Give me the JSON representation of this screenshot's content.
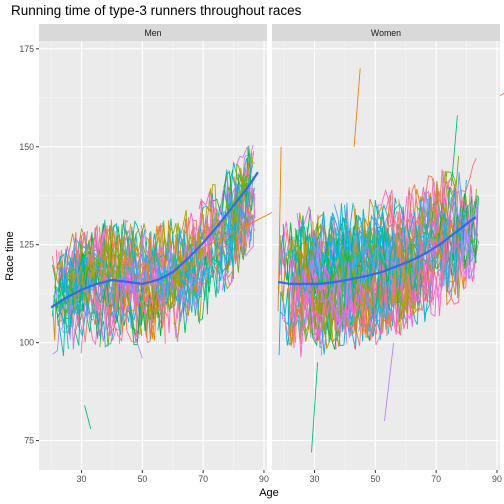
{
  "chart_data": {
    "type": "line",
    "title": "Running time of type-3 runners throughout races",
    "xlabel": "Age",
    "ylabel": "Race time",
    "xlim": [
      16,
      91
    ],
    "ylim": [
      67.5,
      177
    ],
    "x_ticks": [
      30,
      50,
      70,
      90
    ],
    "y_ticks": [
      75,
      100,
      125,
      150,
      175
    ],
    "grid": true,
    "legend": "none",
    "palette": [
      "#F8766D",
      "#E58700",
      "#C99800",
      "#A3A500",
      "#6BB100",
      "#00BA38",
      "#00BF7D",
      "#00C0AF",
      "#00BCD8",
      "#00B0F6",
      "#619CFF",
      "#B983FF",
      "#E76BF3",
      "#FD61D1",
      "#FF67A4"
    ],
    "smooth_color": "#3366FF",
    "facets": [
      {
        "label": "Men",
        "smooth": {
          "x": [
            20,
            25,
            30,
            35,
            40,
            45,
            50,
            55,
            60,
            65,
            70,
            75,
            80,
            85,
            88
          ],
          "y": [
            109,
            111.5,
            113.5,
            115,
            116,
            115.5,
            115,
            116,
            118,
            121.5,
            125.5,
            130,
            135,
            140,
            143.5
          ]
        },
        "trace_params": {
          "seed": 7,
          "count": 190,
          "age_min": 20,
          "age_max": 87,
          "trend": [
            110,
            113,
            116,
            116,
            116,
            117,
            122,
            129,
            140
          ],
          "spread": 12,
          "highlights": [
            [
              72,
              125,
              170,
              164
            ],
            [
              31,
              84,
              33,
              78
            ],
            [
              47,
              103,
              50,
              96
            ]
          ]
        }
      },
      {
        "label": "Women",
        "smooth": {
          "x": [
            18,
            22,
            27,
            32,
            37,
            42,
            47,
            52,
            57,
            62,
            67,
            72,
            77,
            82,
            83
          ],
          "y": [
            115.5,
            115,
            115,
            115,
            115.5,
            116.2,
            117,
            118,
            119.5,
            121,
            123,
            125.5,
            128.5,
            131.5,
            132
          ]
        },
        "trace_params": {
          "seed": 21,
          "count": 240,
          "age_min": 18,
          "age_max": 84,
          "trend": [
            115,
            115,
            116,
            117,
            119,
            121,
            124,
            128,
            132
          ],
          "spread": 14,
          "highlights": [
            [
              43,
              150,
              45,
              170
            ],
            [
              29,
              72,
              31,
              95
            ],
            [
              53,
              80,
              56,
              100
            ],
            [
              18,
              108,
              19,
              150
            ],
            [
              75,
              140,
              77,
              158
            ]
          ]
        }
      }
    ]
  }
}
